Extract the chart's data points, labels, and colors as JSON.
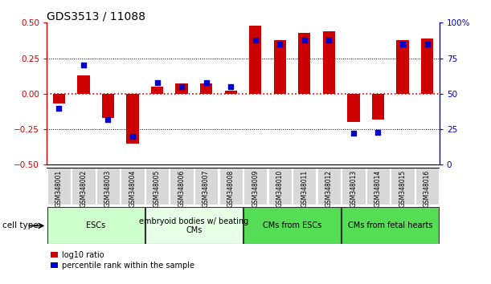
{
  "title": "GDS3513 / 11088",
  "samples": [
    "GSM348001",
    "GSM348002",
    "GSM348003",
    "GSM348004",
    "GSM348005",
    "GSM348006",
    "GSM348007",
    "GSM348008",
    "GSM348009",
    "GSM348010",
    "GSM348011",
    "GSM348012",
    "GSM348013",
    "GSM348014",
    "GSM348015",
    "GSM348016"
  ],
  "log10_ratio": [
    -0.07,
    0.13,
    -0.17,
    -0.35,
    0.05,
    0.07,
    0.07,
    0.02,
    0.48,
    0.38,
    0.43,
    0.44,
    -0.2,
    -0.18,
    0.38,
    0.39
  ],
  "percentile_rank": [
    40,
    70,
    32,
    20,
    58,
    55,
    58,
    55,
    88,
    85,
    88,
    88,
    22,
    23,
    85,
    85
  ],
  "ylim_left": [
    -0.5,
    0.5
  ],
  "ylim_right": [
    0,
    100
  ],
  "yticks_left": [
    -0.5,
    -0.25,
    0,
    0.25,
    0.5
  ],
  "yticks_right": [
    0,
    25,
    50,
    75,
    100
  ],
  "ytick_labels_right": [
    "0",
    "25",
    "50",
    "75",
    "100%"
  ],
  "hlines": [
    -0.25,
    0,
    0.25
  ],
  "bar_color": "#cc0000",
  "dot_color": "#0000cc",
  "bar_width": 0.5,
  "dot_size": 18,
  "cell_type_groups": [
    {
      "label": "ESCs",
      "start": 0,
      "end": 3,
      "color": "#ccffcc"
    },
    {
      "label": "embryoid bodies w/ beating\nCMs",
      "start": 4,
      "end": 7,
      "color": "#e8ffe8"
    },
    {
      "label": "CMs from ESCs",
      "start": 8,
      "end": 11,
      "color": "#55dd55"
    },
    {
      "label": "CMs from fetal hearts",
      "start": 12,
      "end": 15,
      "color": "#55dd55"
    }
  ],
  "cell_type_label": "cell type",
  "legend_red_label": "log10 ratio",
  "legend_blue_label": "percentile rank within the sample",
  "title_fontsize": 10,
  "tick_fontsize": 7.5,
  "sample_tick_fontsize": 5.5,
  "legend_fontsize": 7,
  "ct_label_fontsize": 7.5,
  "ct_group_fontsize": 7
}
